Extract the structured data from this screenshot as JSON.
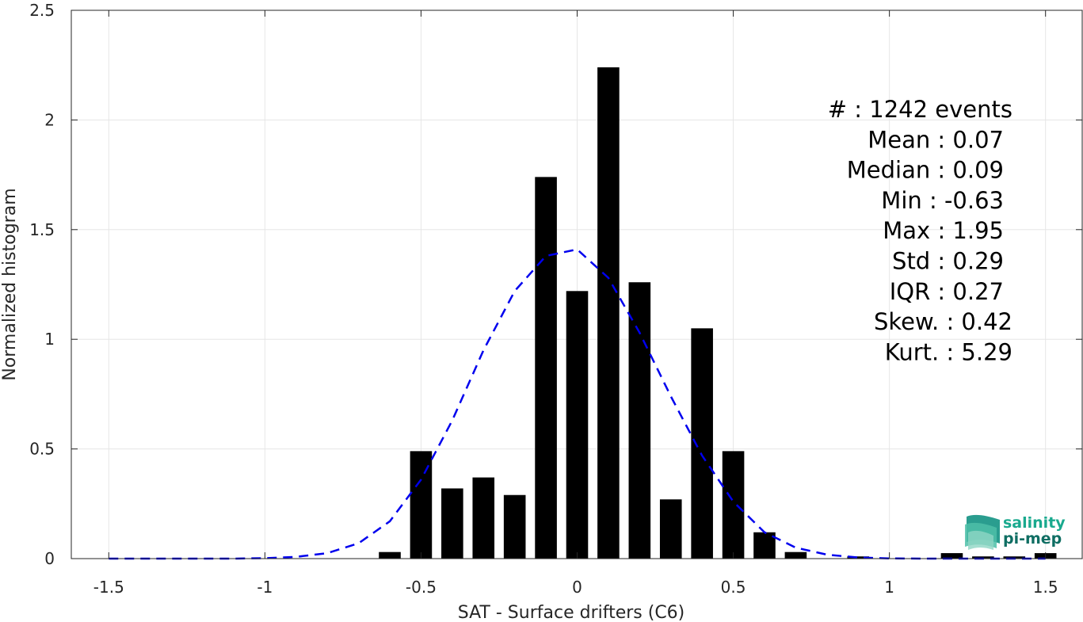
{
  "chart_data": {
    "type": "bar",
    "xlabel": "SAT - Surface drifters (C6)",
    "ylabel": "Normalized histogram",
    "xlim": [
      -1.62,
      1.62
    ],
    "ylim": [
      0,
      2.5
    ],
    "xticks": [
      -1.5,
      -1,
      -0.5,
      0,
      0.5,
      1,
      1.5
    ],
    "xtick_labels": [
      "-1.5",
      "-1",
      "-0.5",
      "0",
      "0.5",
      "1",
      "1.5"
    ],
    "yticks": [
      0,
      0.5,
      1,
      1.5,
      2,
      2.5
    ],
    "ytick_labels": [
      "0",
      "0.5",
      "1",
      "1.5",
      "2",
      "2.5"
    ],
    "grid": true,
    "bar_width": 0.07,
    "bars": {
      "x": [
        -0.6,
        -0.5,
        -0.4,
        -0.3,
        -0.2,
        -0.1,
        0.0,
        0.1,
        0.2,
        0.3,
        0.4,
        0.5,
        0.6,
        0.7,
        0.9,
        1.2,
        1.3,
        1.4,
        1.5
      ],
      "values": [
        0.03,
        0.49,
        0.32,
        0.37,
        0.29,
        1.74,
        1.22,
        2.24,
        1.26,
        0.27,
        1.05,
        0.49,
        0.12,
        0.03,
        0.01,
        0.025,
        0.01,
        0.01,
        0.025
      ]
    },
    "fit": {
      "style": "dashed",
      "color": "#0000ee",
      "x": [
        -1.5,
        -1.4,
        -1.3,
        -1.2,
        -1.1,
        -1.0,
        -0.9,
        -0.8,
        -0.7,
        -0.6,
        -0.5,
        -0.4,
        -0.3,
        -0.2,
        -0.1,
        0.0,
        0.1,
        0.2,
        0.3,
        0.4,
        0.5,
        0.6,
        0.7,
        0.8,
        0.9,
        1.0,
        1.1,
        1.2,
        1.3,
        1.4,
        1.5
      ],
      "y": [
        0.0,
        0.0,
        0.0,
        0.0,
        0.0,
        0.002,
        0.008,
        0.025,
        0.07,
        0.17,
        0.36,
        0.63,
        0.95,
        1.22,
        1.38,
        1.41,
        1.28,
        1.03,
        0.74,
        0.47,
        0.26,
        0.12,
        0.05,
        0.018,
        0.005,
        0.001,
        0.0,
        0.0,
        0.0,
        0.0,
        0.0
      ]
    },
    "annotations": [
      "#  : 1242 events",
      "Mean : 0.07",
      "Median : 0.09",
      "Min : -0.63",
      "Max : 1.95",
      "Std : 0.29",
      "IQR : 0.27",
      "Skew. : 0.42",
      "Kurt. : 5.29"
    ]
  },
  "logo": {
    "line1": "salinity",
    "line2": "pi-mep",
    "color1": "#19a98e",
    "color2": "#0f6e63"
  },
  "colors": {
    "bar": "#000000",
    "grid": "#e6e6e6",
    "axis": "#262626"
  }
}
